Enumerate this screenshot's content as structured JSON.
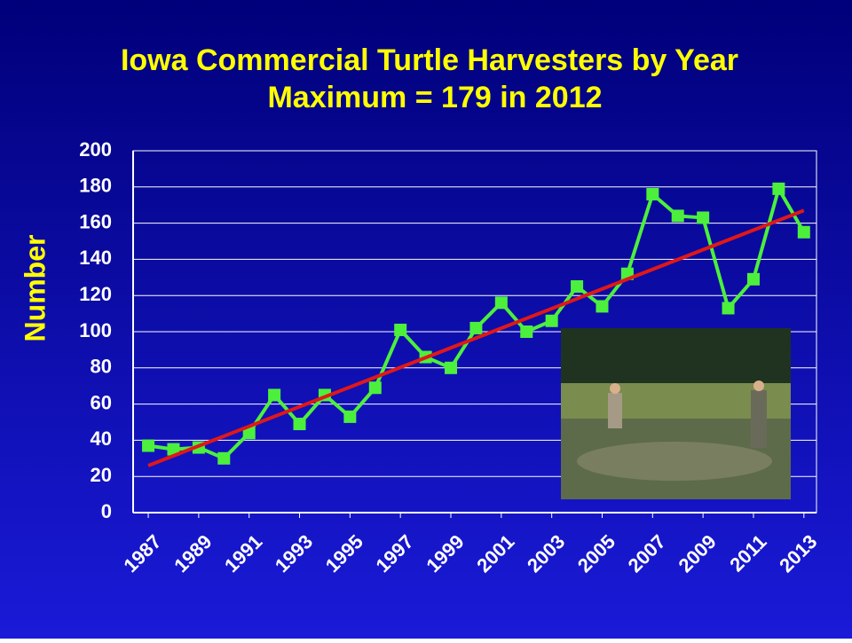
{
  "chart_data": {
    "type": "line",
    "title": "Iowa Commercial Turtle Harvesters by Year",
    "subtitle": "Maximum = 179 in 2012",
    "y_label": "Number",
    "x": [
      1987,
      1988,
      1989,
      1990,
      1991,
      1992,
      1993,
      1994,
      1995,
      1996,
      1997,
      1998,
      1999,
      2000,
      2001,
      2002,
      2003,
      2004,
      2005,
      2006,
      2007,
      2008,
      2009,
      2010,
      2011,
      2012,
      2013
    ],
    "series": [
      {
        "color": "#4cf03c",
        "values": [
          37,
          35,
          36,
          30,
          44,
          65,
          49,
          65,
          53,
          69,
          101,
          86,
          80,
          102,
          116,
          100,
          106,
          125,
          114,
          132,
          176,
          164,
          163,
          113,
          129,
          179,
          155
        ]
      }
    ],
    "trendline": {
      "color": "#e01818",
      "x": [
        1987,
        2013
      ],
      "values": [
        26,
        167
      ]
    },
    "xlim": [
      1986.4,
      2013.5
    ],
    "xticks": [
      1987,
      1989,
      1991,
      1993,
      1995,
      1997,
      1999,
      2001,
      2003,
      2005,
      2007,
      2009,
      2011,
      2013
    ],
    "ylim": [
      0,
      200
    ],
    "yticks": [
      0,
      20,
      40,
      60,
      80,
      100,
      120,
      140,
      160,
      180,
      200
    ],
    "grid": true
  }
}
